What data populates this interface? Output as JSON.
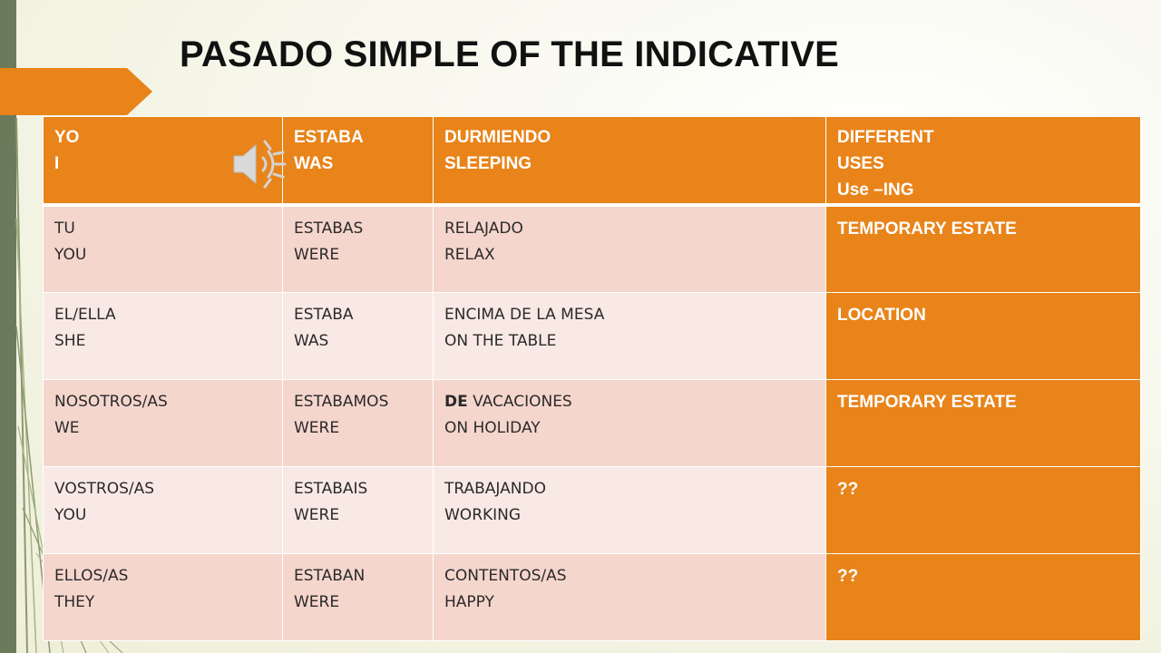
{
  "title": "PASADO SIMPLE OF THE INDICATIVE",
  "colors": {
    "accent": "#e8841a",
    "row_dark": "#f5d6cd",
    "row_light": "#f9e9e5",
    "side_bar": "#6b7a5a"
  },
  "speaker_icon": "speaker-icon",
  "table": {
    "header": {
      "c1": [
        "YO",
        "I"
      ],
      "c2": [
        "ESTABA",
        "WAS"
      ],
      "c3": [
        "DURMIENDO",
        "SLEEPING"
      ],
      "c4": [
        "DIFFERENT",
        "USES",
        "Use –ING"
      ]
    },
    "rows": [
      {
        "c1": [
          "TU",
          "YOU"
        ],
        "c2": [
          "ESTABAS",
          "WERE"
        ],
        "c3": [
          "RELAJADO",
          "RELAX"
        ],
        "c4": "TEMPORARY ESTATE"
      },
      {
        "c1": [
          "EL/ELLA",
          "SHE"
        ],
        "c2": [
          "ESTABA",
          "WAS"
        ],
        "c3": [
          "ENCIMA DE LA MESA",
          "ON THE TABLE"
        ],
        "c4": "LOCATION"
      },
      {
        "c1": [
          "NOSOTROS/AS",
          "WE"
        ],
        "c2": [
          "ESTABAMOS",
          "WERE"
        ],
        "c3": [
          "DE",
          "VACACIONES",
          "ON HOLIDAY"
        ],
        "c4": "TEMPORARY ESTATE"
      },
      {
        "c1": [
          "VOSTROS/AS",
          "YOU"
        ],
        "c2": [
          "ESTABAIS",
          "WERE"
        ],
        "c3": [
          "TRABAJANDO",
          "WORKING"
        ],
        "c4": "??"
      },
      {
        "c1": [
          "ELLOS/AS",
          "THEY"
        ],
        "c2": [
          "ESTABAN",
          "WERE"
        ],
        "c3": [
          "CONTENTOS/AS",
          "HAPPY"
        ],
        "c4": "??"
      }
    ]
  }
}
